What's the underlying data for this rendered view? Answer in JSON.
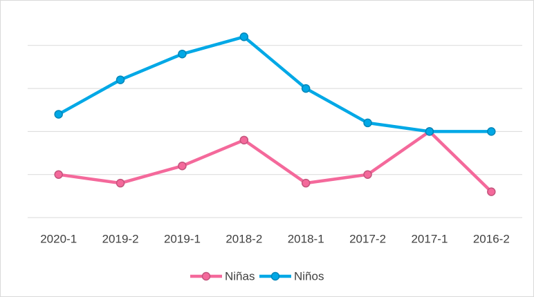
{
  "chart_data": {
    "type": "line",
    "categories": [
      "2020-1",
      "2019-2",
      "2019-1",
      "2018-2",
      "2018-1",
      "2017-2",
      "2017-1",
      "2016-2"
    ],
    "series": [
      {
        "name": "Niñas",
        "color": "#f4699b",
        "values": [
          1.0,
          0.8,
          1.2,
          1.8,
          0.8,
          1.0,
          2.0,
          0.6
        ]
      },
      {
        "name": "Niños",
        "color": "#00a8e6",
        "values": [
          2.4,
          3.2,
          3.8,
          4.2,
          3.0,
          2.2,
          2.0,
          2.0
        ]
      }
    ],
    "ylim": [
      0,
      4.5
    ],
    "yticks": [
      0,
      1,
      2,
      3,
      4
    ],
    "grid": true,
    "legend": "bottom"
  }
}
